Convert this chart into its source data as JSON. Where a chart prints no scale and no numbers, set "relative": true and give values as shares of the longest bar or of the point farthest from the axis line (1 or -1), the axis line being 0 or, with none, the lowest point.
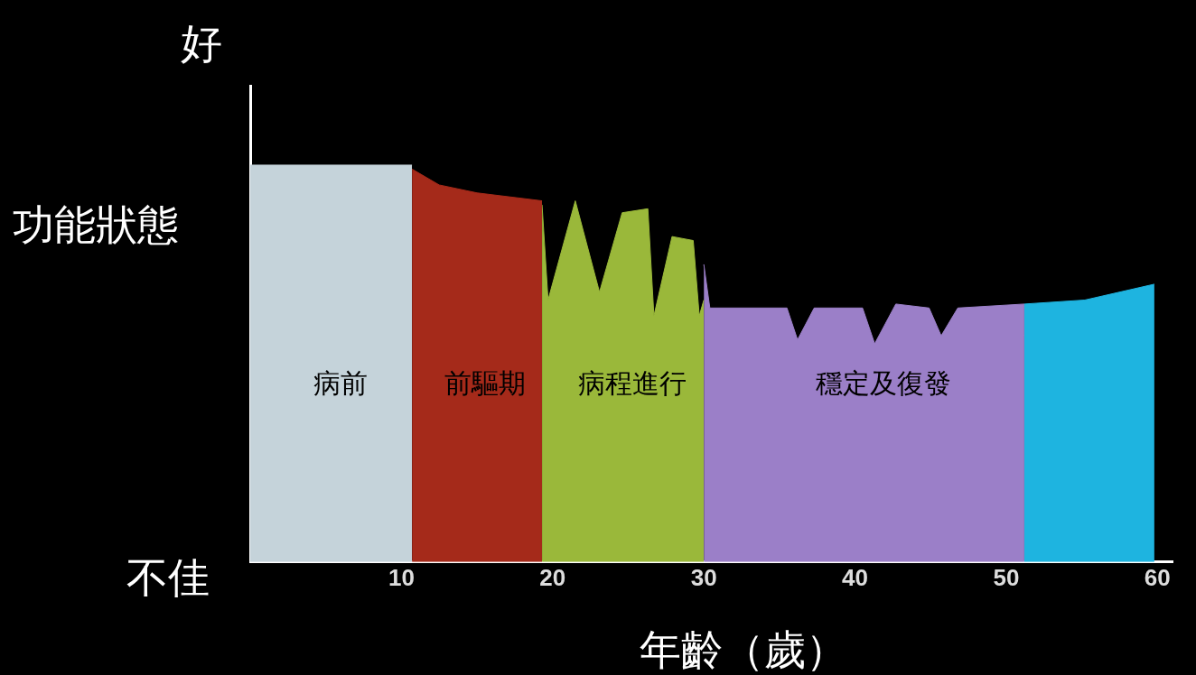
{
  "chart_data": {
    "type": "area",
    "relative": true,
    "xlabel": "年齡（歲）",
    "ylabel": "功能狀態",
    "annotations": [
      "好",
      "不佳"
    ],
    "xlim": [
      0,
      61
    ],
    "xticks": [
      10,
      20,
      30,
      40,
      50,
      60
    ],
    "grid": false,
    "legend": false,
    "series": [
      {
        "name": "病前",
        "color": "#c5d3da",
        "x": [
          0,
          10.7
        ],
        "values": [
          1,
          1
        ]
      },
      {
        "name": "前驅期",
        "color": "#a52a1a",
        "x": [
          10.7,
          12.5,
          15,
          19.3
        ],
        "values": [
          0.99,
          0.95,
          0.93,
          0.91
        ]
      },
      {
        "name": "病程進行",
        "color": "#9ab83a",
        "x": [
          19.3,
          19.7,
          21.5,
          23.1,
          24.6,
          26.3,
          26.7,
          27.9,
          29.3,
          29.7,
          30
        ],
        "values": [
          0.9,
          0.66,
          0.91,
          0.68,
          0.88,
          0.89,
          0.62,
          0.82,
          0.81,
          0.62,
          0.66
        ]
      },
      {
        "name": "穩定及復發",
        "color": "#9b7fc8",
        "x": [
          30,
          30.4,
          35.5,
          36.2,
          37.3,
          40.5,
          41.3,
          42.7,
          44.9,
          45.7,
          46.8,
          51.2
        ],
        "values": [
          0.75,
          0.64,
          0.64,
          0.56,
          0.64,
          0.64,
          0.55,
          0.65,
          0.64,
          0.57,
          0.64,
          0.65
        ]
      },
      {
        "color": "#1eb4e0",
        "x": [
          51.2,
          55.2,
          59.8
        ],
        "values": [
          0.65,
          0.66,
          0.7
        ]
      }
    ]
  }
}
